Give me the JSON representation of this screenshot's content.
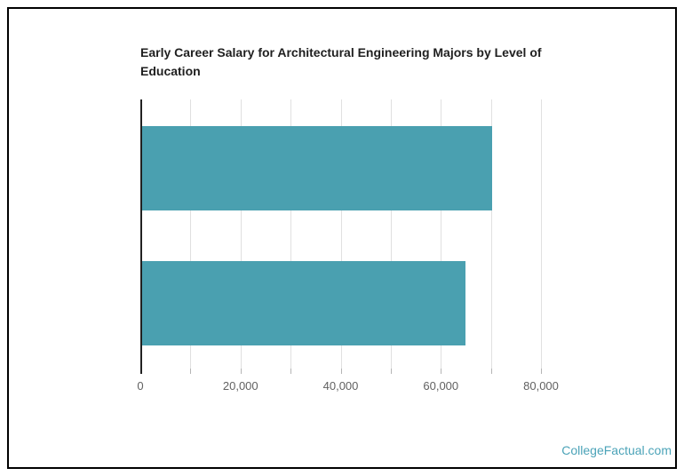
{
  "page": {
    "background_color": "#ffffff",
    "frame_border_color": "#000000"
  },
  "watermark": {
    "text": "CollegeFactual.com",
    "color": "#4ba3b8"
  },
  "chart_data": {
    "type": "bar",
    "orientation": "horizontal",
    "title": "Early Career Salary for Architectural Engineering Majors by Level of Education",
    "title_lines": [
      "Early Career Salary for Architectural Engineering Majors by Level of",
      "Education"
    ],
    "categories": [
      "",
      ""
    ],
    "values": [
      70300,
      65000
    ],
    "bar_color": "#4aa0b0",
    "xlabel": "",
    "ylabel": "",
    "xlim": [
      0,
      80000
    ],
    "x_gridline_step": 10000,
    "grid": true,
    "legend": false,
    "x_ticks": [
      {
        "value": 0,
        "label": "0"
      },
      {
        "value": 20000,
        "label": "20,000"
      },
      {
        "value": 40000,
        "label": "40,000"
      },
      {
        "value": 60000,
        "label": "60,000"
      },
      {
        "value": 80000,
        "label": "80,000"
      }
    ]
  }
}
